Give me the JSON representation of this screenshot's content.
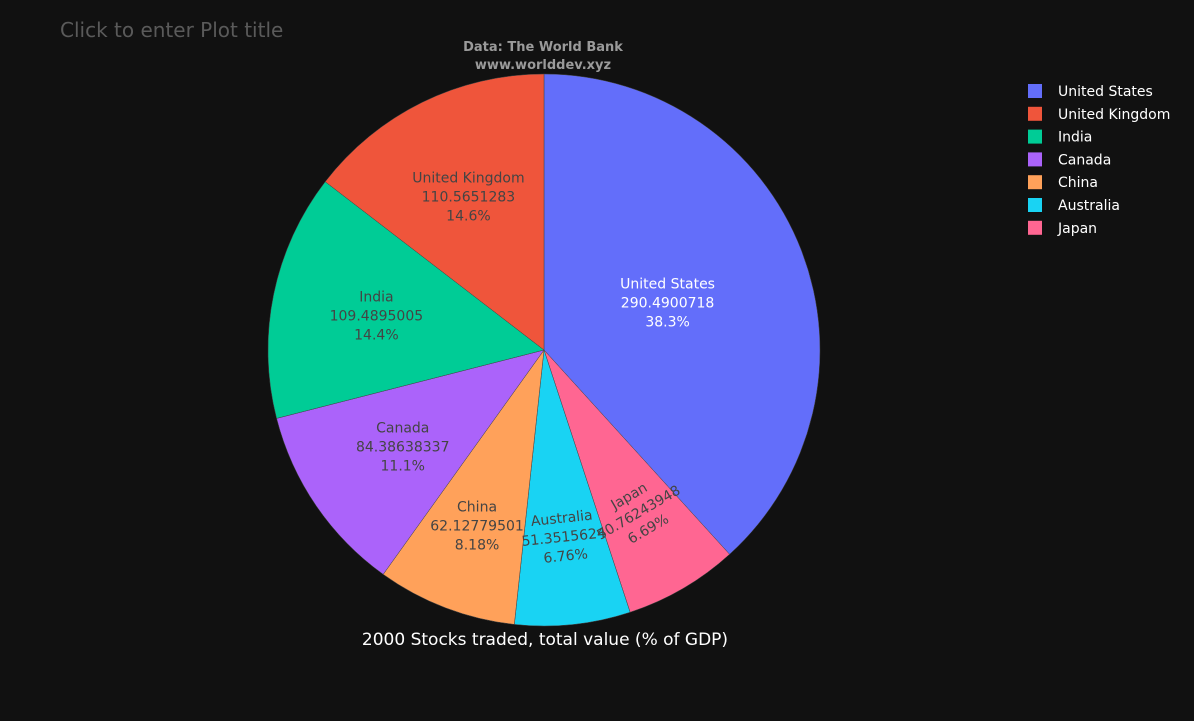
{
  "plot_title_placeholder": "Click to enter Plot title",
  "source": {
    "line1": "Data: The World Bank",
    "line2": "www.worlddev.xyz"
  },
  "chart_data": {
    "type": "pie",
    "title": "2000 Stocks traded, total value (% of GDP)",
    "labels": [
      "United States",
      "United Kingdom",
      "India",
      "Canada",
      "China",
      "Australia",
      "Japan"
    ],
    "values": [
      290.4900718,
      110.5651283,
      109.4895005,
      84.38638337,
      62.12779501,
      51.3515624,
      50.76243948
    ],
    "value_text": [
      "290.4900718",
      "110.5651283",
      "109.4895005",
      "84.38638337",
      "62.12779501",
      "51.3515624",
      "50.76243948"
    ],
    "percent_text": [
      "38.3%",
      "14.6%",
      "14.4%",
      "11.1%",
      "8.18%",
      "6.76%",
      "6.69%"
    ],
    "slice_order": [
      "United States",
      "Japan",
      "Australia",
      "China",
      "Canada",
      "India",
      "United Kingdom"
    ],
    "direction": "clockwise",
    "start": "top",
    "textinfo": "label+value+percent",
    "legend_position": "top-right",
    "colors": {
      "United States": "#636efa",
      "United Kingdom": "#ef553b",
      "India": "#00cc96",
      "Canada": "#ab63fa",
      "China": "#ffa15a",
      "Australia": "#19d3f3",
      "Japan": "#ff6692"
    },
    "label_colors": {
      "United States": "#ffffff",
      "United Kingdom": "#444444",
      "India": "#444444",
      "Canada": "#444444",
      "China": "#444444",
      "Australia": "#444444",
      "Japan": "#444444"
    }
  },
  "theme": {
    "background": "#111111"
  }
}
